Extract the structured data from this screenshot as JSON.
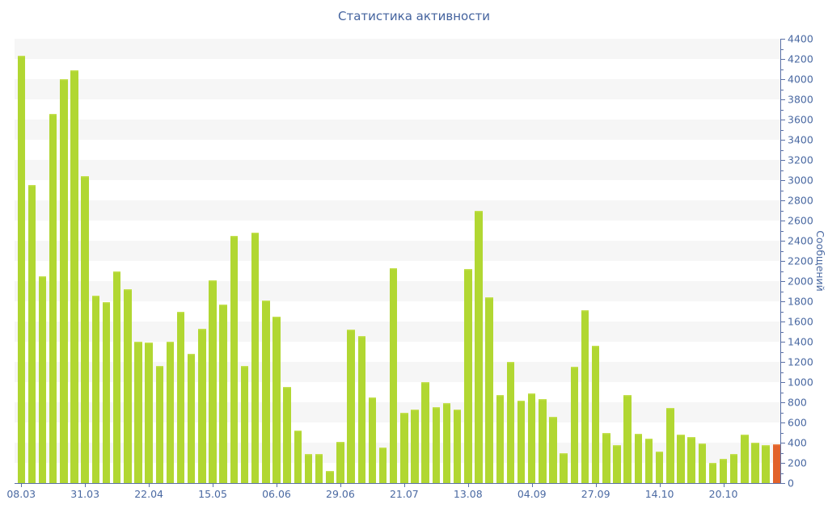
{
  "title": "Статистика активности",
  "y_axis": {
    "title": "Сообщений",
    "min": 0,
    "max": 4400,
    "label_step": 200,
    "minor_tick_step": 100,
    "tick_labels": [
      "0",
      "200",
      "400",
      "600",
      "800",
      "1000",
      "1200",
      "1400",
      "1600",
      "1800",
      "2000",
      "2200",
      "2400",
      "2600",
      "2800",
      "3000",
      "3200",
      "3400",
      "3600",
      "3800",
      "4000",
      "4200",
      "4400"
    ]
  },
  "x_axis": {
    "tick_labels": [
      "08.03",
      "31.03",
      "22.04",
      "15.05",
      "06.06",
      "29.06",
      "21.07",
      "13.08",
      "04.09",
      "27.09",
      "14.10",
      "20.10"
    ],
    "tick_bar_indices": [
      0,
      6,
      12,
      18,
      24,
      30,
      36,
      42,
      48,
      54,
      60,
      66
    ]
  },
  "colors": {
    "bar_green": "#b1d732",
    "bar_orange_last": "#e2622b",
    "axis_line": "#5a70a6",
    "label_text": "#4a69a2",
    "title_text": "#44639e",
    "stripe_gray": "#f6f6f6",
    "background": "#ffffff"
  },
  "chart_data": {
    "type": "bar",
    "title": "Статистика активности",
    "xlabel": "",
    "ylabel": "Сообщений",
    "ylim": [
      0,
      4400
    ],
    "grid": "horizontal-stripes-every-200",
    "legend": "none",
    "bar_count": 72,
    "x_tick_labels": [
      "08.03",
      "31.03",
      "22.04",
      "15.05",
      "06.06",
      "29.06",
      "21.07",
      "13.08",
      "04.09",
      "27.09",
      "14.10",
      "20.10"
    ],
    "x_tick_bar_indices": [
      0,
      6,
      12,
      18,
      24,
      30,
      36,
      42,
      48,
      54,
      60,
      66
    ],
    "values": [
      4230,
      2950,
      2050,
      3660,
      4000,
      4090,
      3040,
      1860,
      1790,
      2100,
      1920,
      1400,
      1390,
      1160,
      1400,
      1700,
      1280,
      1530,
      2010,
      1770,
      2450,
      1160,
      2480,
      1810,
      1650,
      950,
      520,
      290,
      290,
      120,
      410,
      1520,
      1460,
      850,
      350,
      2130,
      700,
      730,
      1000,
      750,
      795,
      730,
      2120,
      2700,
      1840,
      870,
      1200,
      820,
      890,
      830,
      660,
      300,
      1150,
      1710,
      1360,
      500,
      380,
      870,
      490,
      440,
      310,
      745,
      480,
      460,
      390,
      200,
      240,
      290,
      480,
      400,
      380,
      385
    ],
    "last_bar_highlighted": true
  }
}
